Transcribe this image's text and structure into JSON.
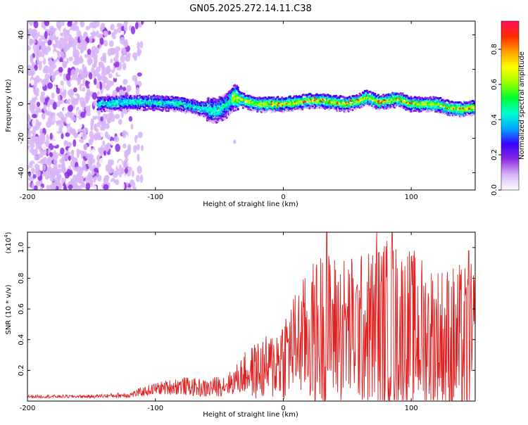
{
  "title": "GN05.2025.272.14.11.C38",
  "chart_data": [
    {
      "type": "heatmap",
      "xlabel": "Height of straight line (km)",
      "ylabel": "Frequency (Hz)",
      "xlim": [
        -200,
        150
      ],
      "ylim": [
        -50,
        48
      ],
      "x_ticks": [
        -200,
        -100,
        0,
        100
      ],
      "x_tick_labels": [
        "-200",
        "-100",
        "0",
        "100"
      ],
      "y_ticks": [
        -40,
        -20,
        0,
        20,
        40
      ],
      "y_tick_labels": [
        "-40",
        "-20",
        "0",
        "20",
        "40"
      ],
      "colorbar": {
        "label": "Normalized spectral amplitude",
        "range": [
          0,
          0.96
        ],
        "ticks": [
          0,
          0.2,
          0.4,
          0.6,
          0.8
        ],
        "tick_labels": [
          "0.0",
          "0.2",
          "0.4",
          "0.6",
          "0.8"
        ],
        "colors": [
          "#ffffff",
          "#d7b4f7",
          "#8a2be2",
          "#3a00ff",
          "#00a8ff",
          "#00ffd0",
          "#00ff30",
          "#a0ff00",
          "#ffff00",
          "#ffa000",
          "#ff2a00",
          "#ff1060"
        ]
      },
      "ridge": {
        "description_x": [
          -145,
          -120,
          -100,
          -80,
          -60,
          -52,
          -45,
          -38,
          -30,
          -20,
          -10,
          0,
          10,
          20,
          30,
          40,
          50,
          60,
          65,
          75,
          90,
          100,
          110,
          120,
          130,
          140,
          150
        ],
        "center_hz": [
          0,
          1,
          1,
          0,
          -3,
          -4,
          -1,
          4,
          2,
          0,
          0,
          0,
          1,
          2,
          2,
          1,
          0,
          2,
          4,
          1,
          3,
          0,
          0,
          0,
          -2,
          -3,
          -2
        ]
      }
    },
    {
      "type": "line",
      "xlabel": "Height of straight line (km)",
      "ylabel": "SNR (10 * v/v)",
      "y_scale_label": "(x10",
      "y_scale_exp": "4",
      "y_scale_close": ")",
      "xlim": [
        -200,
        150
      ],
      "ylim": [
        0,
        1.1
      ],
      "x_ticks": [
        -200,
        -100,
        0,
        100
      ],
      "x_tick_labels": [
        "-200",
        "-100",
        "0",
        "100"
      ],
      "y_ticks": [
        0.2,
        0.4,
        0.6,
        0.8,
        1.0
      ],
      "y_tick_labels": [
        "0.2",
        "0.4",
        "0.6",
        "0.8",
        "1.0"
      ],
      "line_color": "#e02020",
      "envelope": {
        "x": [
          -200,
          -150,
          -120,
          -100,
          -80,
          -60,
          -40,
          -30,
          -20,
          -10,
          0,
          10,
          20,
          30,
          40,
          60,
          80,
          100,
          120,
          140,
          150
        ],
        "mean": [
          0.03,
          0.03,
          0.04,
          0.08,
          0.1,
          0.08,
          0.12,
          0.18,
          0.2,
          0.22,
          0.3,
          0.38,
          0.42,
          0.45,
          0.47,
          0.46,
          0.48,
          0.45,
          0.4,
          0.35,
          0.3
        ],
        "spread": [
          0.01,
          0.01,
          0.02,
          0.04,
          0.06,
          0.06,
          0.08,
          0.14,
          0.2,
          0.22,
          0.3,
          0.35,
          0.45,
          0.55,
          0.5,
          0.5,
          0.6,
          0.55,
          0.5,
          0.55,
          0.6
        ]
      },
      "peaks": [
        {
          "x": 34,
          "y": 1.1
        },
        {
          "x": 73,
          "y": 1.1
        },
        {
          "x": 85,
          "y": 1.1
        },
        {
          "x": 145,
          "y": 0.98
        }
      ]
    }
  ]
}
